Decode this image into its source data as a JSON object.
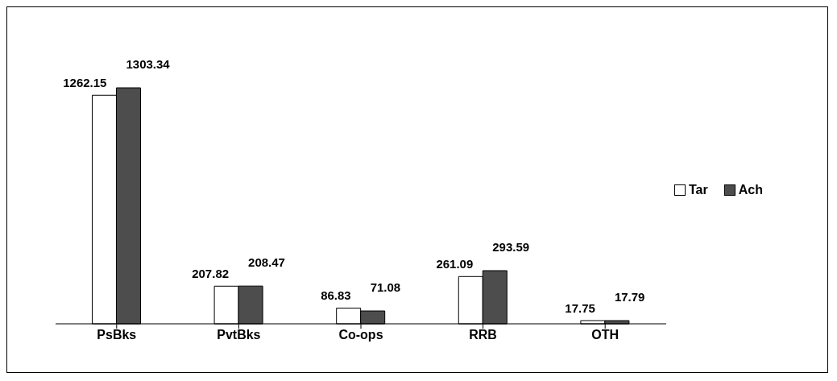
{
  "chart_data": {
    "type": "bar",
    "categories": [
      "PsBks",
      "PvtBks",
      "Co-ops",
      "RRB",
      "OTH"
    ],
    "series": [
      {
        "name": "Tar",
        "color": "#ffffff",
        "values": [
          1262.15,
          207.82,
          86.83,
          261.09,
          17.75
        ]
      },
      {
        "name": "Ach",
        "color": "#4d4d4d",
        "values": [
          1303.34,
          208.47,
          71.08,
          293.59,
          17.79
        ]
      }
    ],
    "data_labels": true,
    "legend": "right",
    "grid": false
  }
}
